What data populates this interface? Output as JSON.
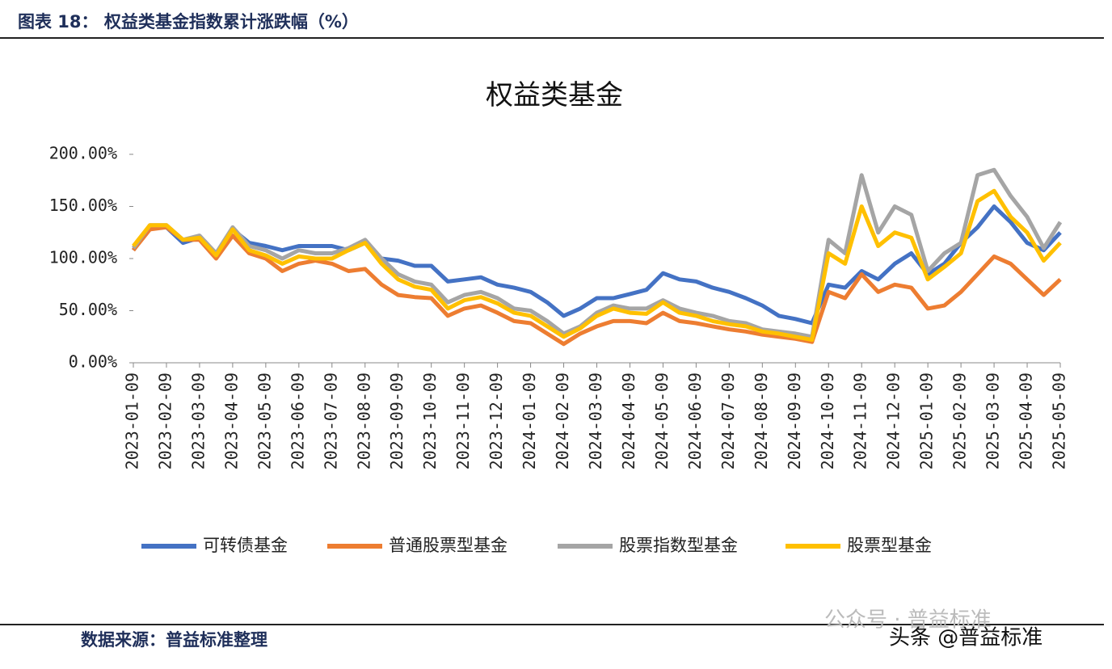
{
  "header": {
    "title": "图表 18：  权益类基金指数累计涨跌幅（%）",
    "source": "数据来源：普益标准整理"
  },
  "watermark": {
    "line1": "公众号 · 普益标准",
    "line2": "头条 @普益标准"
  },
  "chart_data": {
    "type": "line",
    "title": "权益类基金",
    "categories": [
      "2023-01-09",
      null,
      "2023-02-09",
      null,
      "2023-03-09",
      null,
      "2023-04-09",
      null,
      "2023-05-09",
      null,
      "2023-06-09",
      null,
      "2023-07-09",
      null,
      "2023-08-09",
      null,
      "2023-09-09",
      null,
      "2023-10-09",
      null,
      "2023-11-09",
      null,
      "2023-12-09",
      null,
      "2024-01-09",
      null,
      "2024-02-09",
      null,
      "2024-03-09",
      null,
      "2024-04-09",
      null,
      "2024-05-09",
      null,
      "2024-06-09",
      null,
      "2024-07-09",
      null,
      "2024-08-09",
      null,
      "2024-09-09",
      null,
      "2024-10-09",
      null,
      "2024-11-09",
      null,
      "2024-12-09",
      null,
      "2025-01-09",
      null,
      "2025-02-09",
      null,
      "2025-03-09",
      null,
      "2025-04-09",
      null,
      "2025-05-09"
    ],
    "ylim": [
      0,
      200
    ],
    "yticks": [
      {
        "value": 0,
        "label": "0.00%"
      },
      {
        "value": 50,
        "label": "50.00%"
      },
      {
        "value": 100,
        "label": "100.00%"
      },
      {
        "value": 150,
        "label": "150.00%"
      },
      {
        "value": 200,
        "label": "200.00%"
      }
    ],
    "legend": "bottom",
    "series": [
      {
        "name": "可转债基金",
        "color": "#4472c4",
        "values": [
          108,
          130,
          130,
          115,
          120,
          103,
          128,
          115,
          112,
          108,
          112,
          112,
          112,
          108,
          115,
          100,
          98,
          93,
          93,
          78,
          80,
          82,
          75,
          72,
          68,
          58,
          45,
          52,
          62,
          62,
          66,
          70,
          86,
          80,
          78,
          72,
          68,
          62,
          55,
          45,
          42,
          38,
          75,
          72,
          88,
          80,
          95,
          105,
          85,
          95,
          115,
          130,
          150,
          135,
          115,
          108,
          125
        ]
      },
      {
        "name": "普通股票型基金",
        "color": "#ed7d31",
        "values": [
          108,
          128,
          130,
          118,
          118,
          100,
          122,
          105,
          100,
          88,
          95,
          98,
          95,
          88,
          90,
          75,
          65,
          63,
          62,
          45,
          52,
          55,
          48,
          40,
          38,
          28,
          18,
          28,
          35,
          40,
          40,
          38,
          48,
          40,
          38,
          35,
          32,
          30,
          27,
          25,
          23,
          20,
          68,
          62,
          85,
          68,
          75,
          72,
          52,
          55,
          68,
          85,
          102,
          95,
          80,
          65,
          80
        ]
      },
      {
        "name": "股票指数型基金",
        "color": "#a5a5a5",
        "values": [
          110,
          132,
          132,
          118,
          122,
          105,
          130,
          112,
          108,
          100,
          108,
          105,
          105,
          110,
          118,
          100,
          85,
          78,
          75,
          58,
          65,
          68,
          62,
          52,
          50,
          40,
          28,
          35,
          48,
          55,
          52,
          52,
          60,
          52,
          48,
          45,
          40,
          38,
          32,
          30,
          28,
          25,
          118,
          105,
          180,
          125,
          150,
          142,
          88,
          105,
          115,
          180,
          185,
          160,
          140,
          110,
          135
        ]
      },
      {
        "name": "股票型基金",
        "color": "#ffc000",
        "values": [
          112,
          132,
          132,
          118,
          120,
          103,
          128,
          108,
          103,
          95,
          102,
          100,
          100,
          108,
          115,
          95,
          80,
          73,
          70,
          52,
          60,
          63,
          57,
          48,
          45,
          35,
          25,
          33,
          45,
          52,
          48,
          47,
          58,
          48,
          45,
          40,
          37,
          35,
          30,
          28,
          25,
          22,
          105,
          95,
          150,
          112,
          125,
          120,
          80,
          92,
          105,
          155,
          165,
          140,
          125,
          98,
          115
        ]
      }
    ]
  }
}
